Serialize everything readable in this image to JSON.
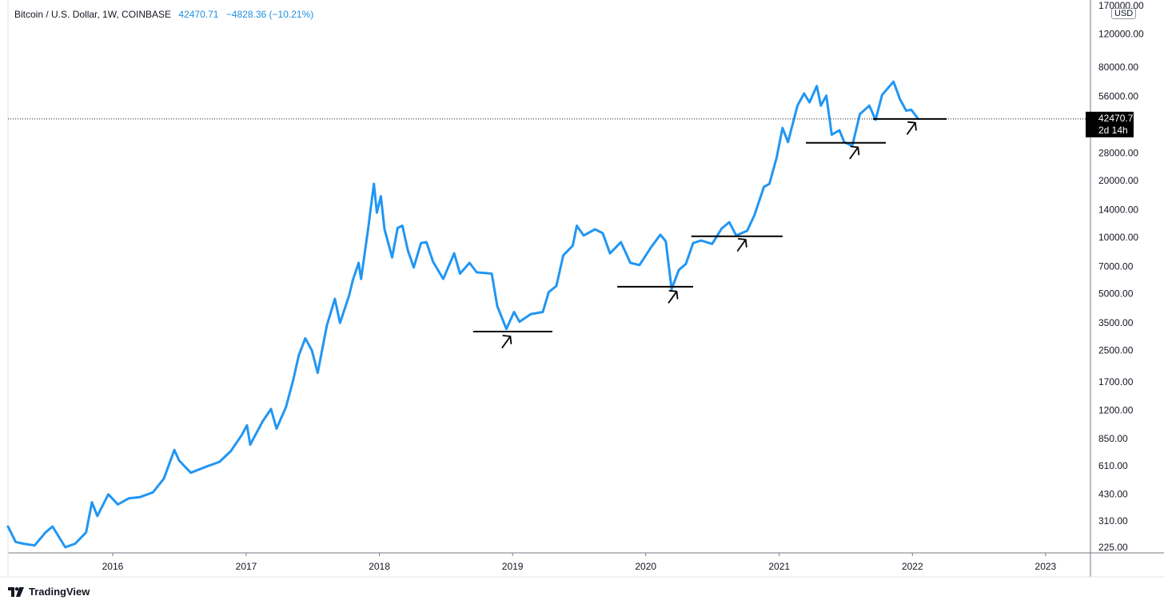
{
  "legend": {
    "symbol": "Bitcoin / U.S. Dollar, 1W, COINBASE",
    "price": "42470.71",
    "change": "−4828.36 (−10.21%)"
  },
  "price_axis": {
    "unit": "USD",
    "current_price": "42470.71",
    "countdown": "2d 14h"
  },
  "branding": {
    "logo_text": "TradingView"
  },
  "colors": {
    "line": "#2196f3",
    "axis": "#131722",
    "grid_border": "#787b86",
    "current_tag_bg": "#000000"
  },
  "chart_data": {
    "type": "line",
    "title": "",
    "xlabel": "",
    "ylabel": "",
    "y_scale": "log",
    "ylim": [
      210,
      175000
    ],
    "xlim": [
      "2015-03-20",
      "2023-05-04"
    ],
    "x_ticks": [
      "2016",
      "2017",
      "2018",
      "2019",
      "2020",
      "2021",
      "2022",
      "2023"
    ],
    "y_ticks": [
      "170000.00",
      "120000.00",
      "80000.00",
      "56000.00",
      "28000.00",
      "20000.00",
      "14000.00",
      "10000.00",
      "7000.00",
      "5000.00",
      "3500.00",
      "2500.00",
      "1700.00",
      "1200.00",
      "850.00",
      "610.00",
      "430.00",
      "310.00",
      "225.00"
    ],
    "series": [
      {
        "points": [
          [
            "2015-03-20",
            290
          ],
          [
            "2015-04-10",
            240
          ],
          [
            "2015-05-01",
            235
          ],
          [
            "2015-06-01",
            230
          ],
          [
            "2015-07-01",
            270
          ],
          [
            "2015-07-20",
            290
          ],
          [
            "2015-08-24",
            225
          ],
          [
            "2015-09-20",
            235
          ],
          [
            "2015-10-20",
            270
          ],
          [
            "2015-11-05",
            390
          ],
          [
            "2015-11-20",
            330
          ],
          [
            "2015-12-20",
            430
          ],
          [
            "2016-01-15",
            380
          ],
          [
            "2016-02-15",
            410
          ],
          [
            "2016-03-15",
            415
          ],
          [
            "2016-04-20",
            440
          ],
          [
            "2016-05-20",
            520
          ],
          [
            "2016-06-18",
            740
          ],
          [
            "2016-07-01",
            650
          ],
          [
            "2016-08-02",
            560
          ],
          [
            "2016-09-15",
            605
          ],
          [
            "2016-10-20",
            640
          ],
          [
            "2016-11-20",
            730
          ],
          [
            "2016-12-20",
            890
          ],
          [
            "2017-01-03",
            1000
          ],
          [
            "2017-01-12",
            790
          ],
          [
            "2017-02-15",
            1050
          ],
          [
            "2017-03-10",
            1220
          ],
          [
            "2017-03-25",
            960
          ],
          [
            "2017-04-20",
            1250
          ],
          [
            "2017-05-10",
            1750
          ],
          [
            "2017-05-25",
            2350
          ],
          [
            "2017-06-12",
            2900
          ],
          [
            "2017-06-30",
            2500
          ],
          [
            "2017-07-16",
            1900
          ],
          [
            "2017-08-10",
            3400
          ],
          [
            "2017-09-01",
            4700
          ],
          [
            "2017-09-15",
            3500
          ],
          [
            "2017-10-10",
            4900
          ],
          [
            "2017-10-20",
            5900
          ],
          [
            "2017-11-05",
            7300
          ],
          [
            "2017-11-12",
            6000
          ],
          [
            "2017-12-01",
            11000
          ],
          [
            "2017-12-17",
            19200
          ],
          [
            "2017-12-25",
            13500
          ],
          [
            "2018-01-05",
            16500
          ],
          [
            "2018-01-15",
            11000
          ],
          [
            "2018-02-05",
            7800
          ],
          [
            "2018-02-20",
            11200
          ],
          [
            "2018-03-05",
            11500
          ],
          [
            "2018-03-20",
            8500
          ],
          [
            "2018-04-05",
            6900
          ],
          [
            "2018-04-25",
            9300
          ],
          [
            "2018-05-10",
            9400
          ],
          [
            "2018-05-28",
            7400
          ],
          [
            "2018-06-25",
            6000
          ],
          [
            "2018-07-25",
            8200
          ],
          [
            "2018-08-10",
            6400
          ],
          [
            "2018-09-05",
            7300
          ],
          [
            "2018-09-25",
            6500
          ],
          [
            "2018-11-05",
            6400
          ],
          [
            "2018-11-20",
            4300
          ],
          [
            "2018-12-15",
            3250
          ],
          [
            "2019-01-05",
            4000
          ],
          [
            "2019-01-20",
            3550
          ],
          [
            "2019-02-20",
            3900
          ],
          [
            "2019-03-25",
            4000
          ],
          [
            "2019-04-10",
            5100
          ],
          [
            "2019-05-01",
            5500
          ],
          [
            "2019-05-20",
            8000
          ],
          [
            "2019-06-15",
            9000
          ],
          [
            "2019-06-26",
            11500
          ],
          [
            "2019-07-15",
            10200
          ],
          [
            "2019-08-15",
            11000
          ],
          [
            "2019-09-05",
            10500
          ],
          [
            "2019-09-25",
            8200
          ],
          [
            "2019-10-25",
            9400
          ],
          [
            "2019-11-20",
            7300
          ],
          [
            "2019-12-15",
            7100
          ],
          [
            "2020-01-15",
            8800
          ],
          [
            "2020-02-10",
            10300
          ],
          [
            "2020-02-25",
            9500
          ],
          [
            "2020-03-12",
            5300
          ],
          [
            "2020-04-01",
            6700
          ],
          [
            "2020-04-20",
            7200
          ],
          [
            "2020-05-10",
            9300
          ],
          [
            "2020-06-01",
            9600
          ],
          [
            "2020-07-01",
            9200
          ],
          [
            "2020-07-27",
            11100
          ],
          [
            "2020-08-17",
            12000
          ],
          [
            "2020-09-05",
            10200
          ],
          [
            "2020-10-05",
            10800
          ],
          [
            "2020-10-25",
            13100
          ],
          [
            "2020-11-20",
            18500
          ],
          [
            "2020-12-05",
            19200
          ],
          [
            "2020-12-25",
            26500
          ],
          [
            "2021-01-10",
            38000
          ],
          [
            "2021-01-25",
            32000
          ],
          [
            "2021-02-20",
            50000
          ],
          [
            "2021-03-10",
            58000
          ],
          [
            "2021-03-25",
            52000
          ],
          [
            "2021-04-14",
            63500
          ],
          [
            "2021-04-25",
            50000
          ],
          [
            "2021-05-10",
            56500
          ],
          [
            "2021-05-25",
            35000
          ],
          [
            "2021-06-15",
            37000
          ],
          [
            "2021-06-28",
            32000
          ],
          [
            "2021-07-20",
            30500
          ],
          [
            "2021-08-10",
            45000
          ],
          [
            "2021-09-05",
            50000
          ],
          [
            "2021-09-22",
            42000
          ],
          [
            "2021-10-10",
            57000
          ],
          [
            "2021-11-10",
            67000
          ],
          [
            "2021-11-28",
            54000
          ],
          [
            "2021-12-15",
            47000
          ],
          [
            "2021-12-29",
            47500
          ],
          [
            "2022-01-17",
            42470.71
          ]
        ]
      }
    ],
    "annotations": {
      "support_lines": [
        {
          "start": "2018-09-15",
          "end": "2019-04-20",
          "price": 3150
        },
        {
          "start": "2019-10-15",
          "end": "2020-05-10",
          "price": 5450
        },
        {
          "start": "2020-05-05",
          "end": "2021-01-10",
          "price": 10100
        },
        {
          "start": "2021-03-15",
          "end": "2021-10-20",
          "price": 31700
        },
        {
          "start": "2021-09-15",
          "end": "2022-04-05",
          "price": 42470.71
        }
      ],
      "arrows": [
        {
          "date": "2018-12-15",
          "price": 2800
        },
        {
          "date": "2020-03-15",
          "price": 4850
        },
        {
          "date": "2020-09-20",
          "price": 9150
        },
        {
          "date": "2021-07-25",
          "price": 28300
        },
        {
          "date": "2021-12-29",
          "price": 38200
        }
      ],
      "current_price_line": 42470.71
    }
  }
}
